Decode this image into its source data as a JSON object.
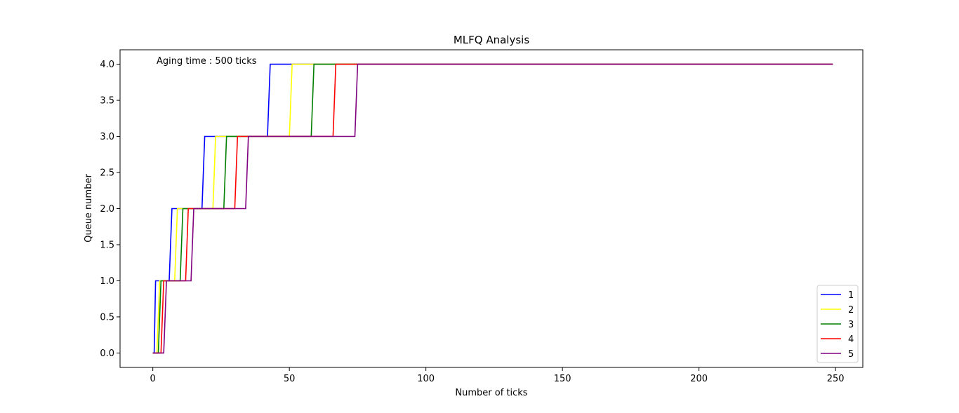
{
  "chart_data": {
    "type": "line",
    "title": "MLFQ Analysis",
    "xlabel": "Number of ticks",
    "ylabel": "Queue number",
    "xlim": [
      -12,
      260
    ],
    "ylim": [
      -0.2,
      4.2
    ],
    "xticks": [
      0,
      50,
      100,
      150,
      200,
      250
    ],
    "yticks": [
      0.0,
      0.5,
      1.0,
      1.5,
      2.0,
      2.5,
      3.0,
      3.5,
      4.0
    ],
    "xtick_labels": [
      "0",
      "50",
      "100",
      "150",
      "200",
      "250"
    ],
    "ytick_labels": [
      "0.0",
      "0.5",
      "1.0",
      "1.5",
      "2.0",
      "2.5",
      "3.0",
      "3.5",
      "4.0"
    ],
    "annotation": "Aging time : 500 ticks",
    "legend_position": "lower-right",
    "series": [
      {
        "name": "1",
        "color": "#0000ff",
        "x": [
          0,
          0.5,
          1,
          1.5,
          6,
          7,
          18,
          19,
          42,
          43,
          249
        ],
        "y": [
          0,
          0,
          1,
          1,
          1,
          2,
          2,
          3,
          3,
          4,
          4
        ]
      },
      {
        "name": "2",
        "color": "#ffff00",
        "x": [
          0,
          1.5,
          2.5,
          3,
          8,
          9,
          22,
          23,
          50,
          51,
          249
        ],
        "y": [
          0,
          0,
          1,
          1,
          1,
          2,
          2,
          3,
          3,
          4,
          4
        ]
      },
      {
        "name": "3",
        "color": "#008000",
        "x": [
          0,
          2,
          3,
          3.5,
          10,
          11,
          26,
          27,
          58,
          59,
          249
        ],
        "y": [
          0,
          0,
          1,
          1,
          1,
          2,
          2,
          3,
          3,
          4,
          4
        ]
      },
      {
        "name": "4",
        "color": "#ff0000",
        "x": [
          0,
          3,
          4,
          4.5,
          12,
          13,
          30,
          31,
          66,
          67,
          249
        ],
        "y": [
          0,
          0,
          1,
          1,
          1,
          2,
          2,
          3,
          3,
          4,
          4
        ]
      },
      {
        "name": "5",
        "color": "#800080",
        "x": [
          0,
          4,
          5,
          5.5,
          14,
          15,
          34,
          35,
          74,
          75,
          249
        ],
        "y": [
          0,
          0,
          1,
          1,
          1,
          2,
          2,
          3,
          3,
          4,
          4
        ]
      }
    ]
  }
}
